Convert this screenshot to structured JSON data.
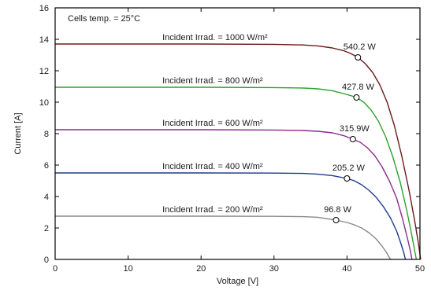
{
  "chart_data": {
    "type": "line",
    "xlabel": "Voltage [V]",
    "ylabel": "Current [A]",
    "xlim": [
      0,
      50
    ],
    "ylim": [
      0,
      16
    ],
    "xticks": [
      0,
      10,
      20,
      30,
      40,
      50
    ],
    "yticks": [
      0,
      2,
      4,
      6,
      8,
      10,
      12,
      14,
      16
    ],
    "grid": false,
    "note": "Cells temp. = 25°C",
    "series": [
      {
        "name": "Incident Irrad. = 1000 W/m²",
        "color": "#6b1a1a",
        "points": [
          [
            0,
            13.7
          ],
          [
            10,
            13.7
          ],
          [
            20,
            13.7
          ],
          [
            30,
            13.68
          ],
          [
            34,
            13.64
          ],
          [
            36,
            13.58
          ],
          [
            38,
            13.45
          ],
          [
            39.5,
            13.28
          ],
          [
            40.5,
            13.1
          ],
          [
            41.5,
            12.85
          ],
          [
            42.5,
            12.45
          ],
          [
            43.5,
            11.9
          ],
          [
            44.5,
            11.1
          ],
          [
            45.5,
            10.0
          ],
          [
            46.5,
            8.5
          ],
          [
            47.5,
            6.6
          ],
          [
            48.5,
            4.4
          ],
          [
            49.3,
            2.4
          ],
          [
            49.8,
            1.0
          ],
          [
            50.1,
            0
          ]
        ],
        "mpp": {
          "v": 41.5,
          "i": 12.85,
          "label": "540.2 W"
        }
      },
      {
        "name": "Incident Irrad. = 800 W/m²",
        "color": "#2ea12e",
        "points": [
          [
            0,
            10.95
          ],
          [
            10,
            10.95
          ],
          [
            20,
            10.95
          ],
          [
            30,
            10.93
          ],
          [
            34,
            10.9
          ],
          [
            36,
            10.85
          ],
          [
            38,
            10.73
          ],
          [
            39.5,
            10.55
          ],
          [
            40.5,
            10.42
          ],
          [
            41.3,
            10.3
          ],
          [
            42.3,
            10.0
          ],
          [
            43.3,
            9.5
          ],
          [
            44.3,
            8.8
          ],
          [
            45.3,
            7.8
          ],
          [
            46.3,
            6.5
          ],
          [
            47.3,
            4.9
          ],
          [
            48.2,
            3.1
          ],
          [
            48.9,
            1.5
          ],
          [
            49.3,
            0.5
          ],
          [
            49.5,
            0
          ]
        ],
        "mpp": {
          "v": 41.3,
          "i": 10.3,
          "label": "427.8 W"
        }
      },
      {
        "name": "Incident Irrad. = 600 W/m²",
        "color": "#8b2a8b",
        "points": [
          [
            0,
            8.25
          ],
          [
            10,
            8.25
          ],
          [
            20,
            8.25
          ],
          [
            30,
            8.23
          ],
          [
            34,
            8.2
          ],
          [
            36,
            8.15
          ],
          [
            38,
            8.05
          ],
          [
            39.5,
            7.88
          ],
          [
            40.8,
            7.65
          ],
          [
            41.8,
            7.45
          ],
          [
            42.8,
            7.1
          ],
          [
            43.8,
            6.6
          ],
          [
            44.8,
            5.9
          ],
          [
            45.8,
            5.0
          ],
          [
            46.8,
            3.9
          ],
          [
            47.6,
            2.6
          ],
          [
            48.3,
            1.3
          ],
          [
            48.7,
            0.5
          ],
          [
            48.9,
            0
          ]
        ],
        "mpp": {
          "v": 40.8,
          "i": 7.65,
          "label": "315.9W"
        }
      },
      {
        "name": "Incident Irrad. = 400 W/m²",
        "color": "#1f3a8a",
        "points": [
          [
            0,
            5.5
          ],
          [
            10,
            5.5
          ],
          [
            20,
            5.5
          ],
          [
            30,
            5.49
          ],
          [
            34,
            5.47
          ],
          [
            36,
            5.42
          ],
          [
            38,
            5.33
          ],
          [
            40.0,
            5.15
          ],
          [
            41.0,
            5.0
          ],
          [
            42.0,
            4.75
          ],
          [
            43.0,
            4.4
          ],
          [
            44.0,
            3.95
          ],
          [
            45.0,
            3.35
          ],
          [
            46.0,
            2.6
          ],
          [
            46.8,
            1.8
          ],
          [
            47.4,
            1.0
          ],
          [
            47.8,
            0.4
          ],
          [
            48.0,
            0
          ]
        ],
        "mpp": {
          "v": 40.0,
          "i": 5.15,
          "label": "205.2 W"
        }
      },
      {
        "name": "Incident Irrad. = 200 W/m²",
        "color": "#8a8a8a",
        "points": [
          [
            0,
            2.75
          ],
          [
            10,
            2.75
          ],
          [
            20,
            2.75
          ],
          [
            30,
            2.74
          ],
          [
            34,
            2.72
          ],
          [
            36,
            2.68
          ],
          [
            38.5,
            2.5
          ],
          [
            40.0,
            2.35
          ],
          [
            41.0,
            2.2
          ],
          [
            42.0,
            2.0
          ],
          [
            43.0,
            1.7
          ],
          [
            44.0,
            1.3
          ],
          [
            44.8,
            0.85
          ],
          [
            45.4,
            0.45
          ],
          [
            45.8,
            0.12
          ],
          [
            46.0,
            0
          ]
        ],
        "mpp": {
          "v": 38.5,
          "i": 2.5,
          "label": "96.8 W"
        }
      }
    ]
  }
}
